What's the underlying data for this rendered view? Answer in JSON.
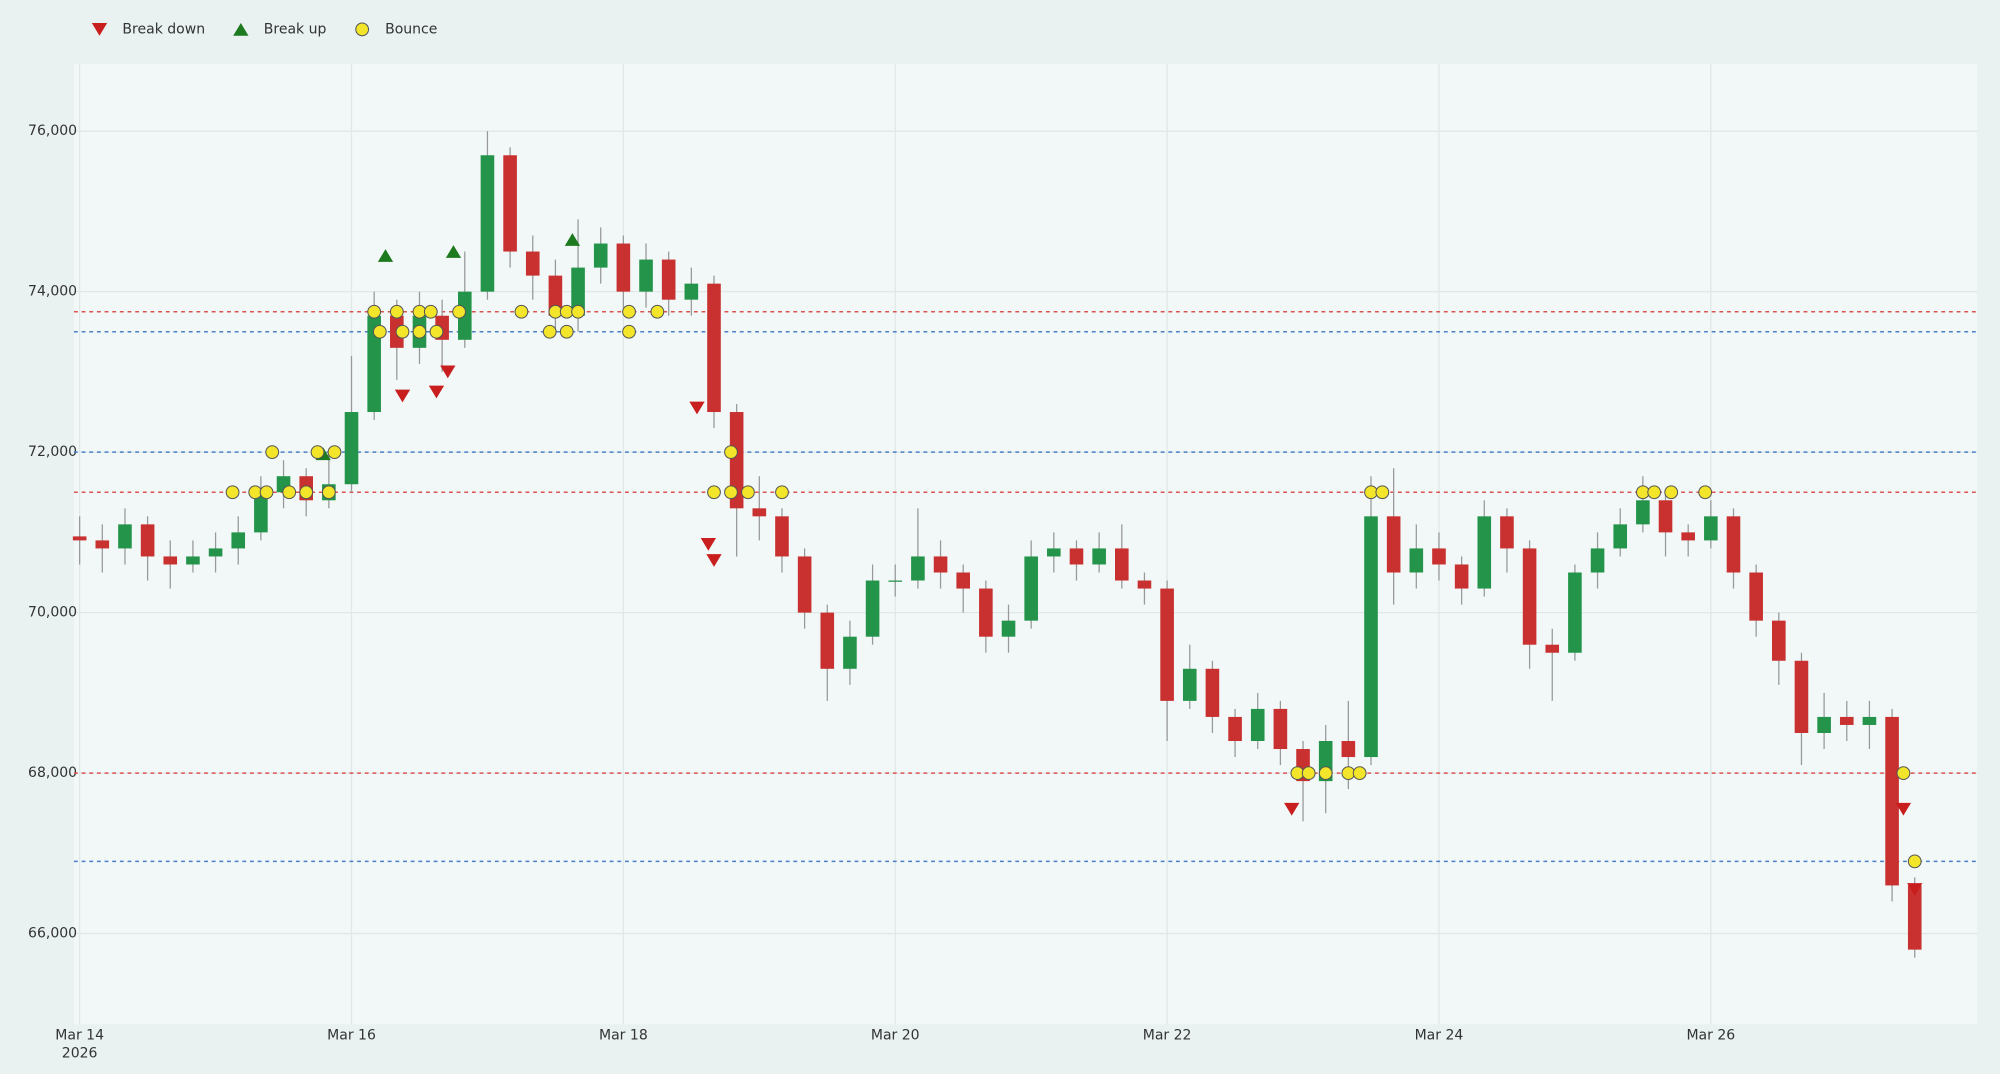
{
  "chart_data": {
    "type": "candlestick",
    "legend": "top-left",
    "grid": true,
    "increasing_color": "#23944a",
    "decreasing_color": "#c8312f",
    "xaxis_year": "2026",
    "xlim": [
      "2026-03-13 23:00",
      "2026-03-27 23:00"
    ],
    "xticks": [
      {
        "value": "2026-03-14 00:00",
        "label": "Mar 14"
      },
      {
        "value": "2026-03-16 00:00",
        "label": "Mar 16"
      },
      {
        "value": "2026-03-18 00:00",
        "label": "Mar 18"
      },
      {
        "value": "2026-03-20 00:00",
        "label": "Mar 20"
      },
      {
        "value": "2026-03-22 00:00",
        "label": "Mar 22"
      },
      {
        "value": "2026-03-24 00:00",
        "label": "Mar 24"
      },
      {
        "value": "2026-03-26 00:00",
        "label": "Mar 26"
      }
    ],
    "ylim": [
      64870,
      76840
    ],
    "yticks": [
      {
        "value": 66000,
        "label": "66,000"
      },
      {
        "value": 68000,
        "label": "68,000"
      },
      {
        "value": 70000,
        "label": "70,000"
      },
      {
        "value": 72000,
        "label": "72,000"
      },
      {
        "value": 74000,
        "label": "74,000"
      },
      {
        "value": 76000,
        "label": "76,000"
      }
    ],
    "x": [
      "2026-03-14 00:00",
      "2026-03-14 04:00",
      "2026-03-14 08:00",
      "2026-03-14 12:00",
      "2026-03-14 16:00",
      "2026-03-14 20:00",
      "2026-03-15 00:00",
      "2026-03-15 04:00",
      "2026-03-15 08:00",
      "2026-03-15 12:00",
      "2026-03-15 16:00",
      "2026-03-15 20:00",
      "2026-03-16 00:00",
      "2026-03-16 04:00",
      "2026-03-16 08:00",
      "2026-03-16 12:00",
      "2026-03-16 16:00",
      "2026-03-16 20:00",
      "2026-03-17 00:00",
      "2026-03-17 04:00",
      "2026-03-17 08:00",
      "2026-03-17 12:00",
      "2026-03-17 16:00",
      "2026-03-17 20:00",
      "2026-03-18 00:00",
      "2026-03-18 04:00",
      "2026-03-18 08:00",
      "2026-03-18 12:00",
      "2026-03-18 16:00",
      "2026-03-18 20:00",
      "2026-03-19 00:00",
      "2026-03-19 04:00",
      "2026-03-19 08:00",
      "2026-03-19 12:00",
      "2026-03-19 16:00",
      "2026-03-19 20:00",
      "2026-03-20 00:00",
      "2026-03-20 04:00",
      "2026-03-20 08:00",
      "2026-03-20 12:00",
      "2026-03-20 16:00",
      "2026-03-20 20:00",
      "2026-03-21 00:00",
      "2026-03-21 04:00",
      "2026-03-21 08:00",
      "2026-03-21 12:00",
      "2026-03-21 16:00",
      "2026-03-21 20:00",
      "2026-03-22 00:00",
      "2026-03-22 04:00",
      "2026-03-22 08:00",
      "2026-03-22 12:00",
      "2026-03-22 16:00",
      "2026-03-22 20:00",
      "2026-03-23 00:00",
      "2026-03-23 04:00",
      "2026-03-23 08:00",
      "2026-03-23 12:00",
      "2026-03-23 16:00",
      "2026-03-23 20:00",
      "2026-03-24 00:00",
      "2026-03-24 04:00",
      "2026-03-24 08:00",
      "2026-03-24 12:00",
      "2026-03-24 16:00",
      "2026-03-24 20:00",
      "2026-03-25 00:00",
      "2026-03-25 04:00",
      "2026-03-25 08:00",
      "2026-03-25 12:00",
      "2026-03-25 16:00",
      "2026-03-25 20:00",
      "2026-03-26 00:00",
      "2026-03-26 04:00",
      "2026-03-26 08:00",
      "2026-03-26 12:00",
      "2026-03-26 16:00",
      "2026-03-26 20:00",
      "2026-03-27 00:00",
      "2026-03-27 04:00",
      "2026-03-27 08:00",
      "2026-03-27 12:00"
    ],
    "open": [
      70950,
      70900,
      70800,
      71100,
      70700,
      70600,
      70700,
      70800,
      71000,
      71500,
      71700,
      71400,
      71600,
      72500,
      73700,
      73300,
      73700,
      73400,
      74000,
      75700,
      74500,
      74200,
      73700,
      74300,
      74600,
      74000,
      74400,
      73900,
      74100,
      72500,
      71300,
      71200,
      70700,
      70000,
      69300,
      69700,
      70400,
      70400,
      70700,
      70500,
      70300,
      69700,
      69900,
      70700,
      70800,
      70600,
      70800,
      70400,
      70300,
      68900,
      69300,
      68700,
      68400,
      68800,
      68300,
      67900,
      68400,
      68200,
      71200,
      70500,
      70800,
      70600,
      70300,
      71200,
      70800,
      69600,
      69500,
      70500,
      70800,
      71100,
      71400,
      71000,
      70900,
      71200,
      70500,
      69900,
      69400,
      68500,
      68700,
      68600,
      68700,
      66600
    ],
    "high": [
      71200,
      71100,
      71300,
      71200,
      70900,
      70900,
      71000,
      71200,
      71700,
      71900,
      71800,
      72000,
      73200,
      74000,
      73900,
      74000,
      73900,
      74500,
      76000,
      75800,
      74700,
      74400,
      74900,
      74800,
      74700,
      74600,
      74500,
      74300,
      74200,
      72600,
      71700,
      71300,
      70800,
      70100,
      69900,
      70600,
      70600,
      71300,
      70900,
      70600,
      70400,
      70100,
      70900,
      71000,
      70900,
      71000,
      71100,
      70500,
      70400,
      69600,
      69400,
      68800,
      69000,
      68900,
      68400,
      68600,
      68900,
      71700,
      71800,
      71100,
      71000,
      70700,
      71400,
      71300,
      70900,
      69800,
      70600,
      71000,
      71300,
      71700,
      71500,
      71100,
      71400,
      71300,
      70600,
      70000,
      69500,
      69000,
      68900,
      68900,
      68800,
      66700
    ],
    "low": [
      70600,
      70500,
      70600,
      70400,
      70300,
      70500,
      70500,
      70600,
      70900,
      71300,
      71200,
      71300,
      71500,
      72400,
      72900,
      73100,
      73000,
      73300,
      73900,
      74300,
      73900,
      73500,
      73500,
      74100,
      73800,
      73800,
      73700,
      73700,
      72300,
      70700,
      70900,
      70500,
      69800,
      68900,
      69100,
      69600,
      70200,
      70300,
      70300,
      70000,
      69500,
      69500,
      69800,
      70500,
      70400,
      70500,
      70300,
      70100,
      68400,
      68800,
      68500,
      68200,
      68300,
      68100,
      67400,
      67500,
      67800,
      68100,
      70100,
      70300,
      70400,
      70100,
      70200,
      70500,
      69300,
      68900,
      69400,
      70300,
      70700,
      71000,
      70700,
      70700,
      70800,
      70300,
      69700,
      69100,
      68100,
      68300,
      68400,
      68300,
      66400,
      65700
    ],
    "close": [
      70900,
      70800,
      71100,
      70700,
      70600,
      70700,
      70800,
      71000,
      71500,
      71700,
      71400,
      71600,
      72500,
      73700,
      73300,
      73700,
      73400,
      74000,
      75700,
      74500,
      74200,
      73700,
      74300,
      74600,
      74000,
      74400,
      73900,
      74100,
      72500,
      71300,
      71200,
      70700,
      70000,
      69300,
      69700,
      70400,
      70400,
      70700,
      70500,
      70300,
      69700,
      69900,
      70700,
      70800,
      70600,
      70800,
      70400,
      70300,
      68900,
      69300,
      68700,
      68400,
      68800,
      68300,
      67900,
      68400,
      68200,
      71200,
      70500,
      70800,
      70600,
      70300,
      71200,
      70800,
      69600,
      69500,
      70500,
      70800,
      71100,
      71400,
      71000,
      70900,
      71200,
      70500,
      69900,
      69400,
      68500,
      68700,
      68600,
      68700,
      66600,
      65800
    ],
    "levels": [
      {
        "value": 73750,
        "color": "#d9534f"
      },
      {
        "value": 73500,
        "color": "#4a7fc1"
      },
      {
        "value": 72000,
        "color": "#4a7fc1"
      },
      {
        "value": 71500,
        "color": "#d9534f"
      },
      {
        "value": 68000,
        "color": "#d9534f"
      },
      {
        "value": 66900,
        "color": "#4a7fc1"
      }
    ],
    "markers": [
      {
        "name": "Break down",
        "symbol": "triangle-down",
        "color": "#c81e1e",
        "x": [
          "2026-03-16 09:00",
          "2026-03-16 15:00",
          "2026-03-16 17:00",
          "2026-03-18 13:00",
          "2026-03-18 15:00",
          "2026-03-18 16:00",
          "2026-03-22 22:00",
          "2026-03-27 10:00",
          "2026-03-27 12:00"
        ],
        "y": [
          72700,
          72750,
          73000,
          72550,
          70850,
          70650,
          67550,
          67550,
          66550
        ]
      },
      {
        "name": "Break up",
        "symbol": "triangle-up",
        "color": "#1e7a1e",
        "x": [
          "2026-03-15 19:00",
          "2026-03-16 06:00",
          "2026-03-16 18:00",
          "2026-03-17 15:00"
        ],
        "y": [
          71980,
          74450,
          74500,
          74650
        ]
      },
      {
        "name": "Bounce",
        "symbol": "circle",
        "color": "#f3e52a",
        "x": [
          "2026-03-15 03:00",
          "2026-03-15 07:00",
          "2026-03-15 09:00",
          "2026-03-15 13:00",
          "2026-03-15 16:00",
          "2026-03-15 20:00",
          "2026-03-18 16:00",
          "2026-03-18 19:00",
          "2026-03-18 22:00",
          "2026-03-19 04:00",
          "2026-03-23 12:00",
          "2026-03-23 14:00",
          "2026-03-25 12:00",
          "2026-03-25 14:00",
          "2026-03-25 17:00",
          "2026-03-25 23:00",
          "2026-03-15 10:00",
          "2026-03-15 18:00",
          "2026-03-15 21:00",
          "2026-03-18 19:00",
          "2026-03-16 04:00",
          "2026-03-16 08:00",
          "2026-03-16 12:00",
          "2026-03-16 14:00",
          "2026-03-16 19:00",
          "2026-03-17 06:00",
          "2026-03-17 12:00",
          "2026-03-17 14:00",
          "2026-03-17 16:00",
          "2026-03-18 01:00",
          "2026-03-18 06:00",
          "2026-03-16 05:00",
          "2026-03-16 09:00",
          "2026-03-16 12:00",
          "2026-03-16 15:00",
          "2026-03-17 11:00",
          "2026-03-17 14:00",
          "2026-03-18 01:00",
          "2026-03-22 23:00",
          "2026-03-23 01:00",
          "2026-03-23 04:00",
          "2026-03-23 08:00",
          "2026-03-23 10:00",
          "2026-03-27 10:00",
          "2026-03-27 12:00"
        ],
        "y": [
          71500,
          71500,
          71500,
          71500,
          71500,
          71500,
          71500,
          71500,
          71500,
          71500,
          71500,
          71500,
          71500,
          71500,
          71500,
          71500,
          72000,
          72000,
          72000,
          72000,
          73750,
          73750,
          73750,
          73750,
          73750,
          73750,
          73750,
          73750,
          73750,
          73750,
          73750,
          73500,
          73500,
          73500,
          73500,
          73500,
          73500,
          73500,
          68000,
          68000,
          68000,
          68000,
          68000,
          68000,
          66900
        ]
      }
    ]
  }
}
